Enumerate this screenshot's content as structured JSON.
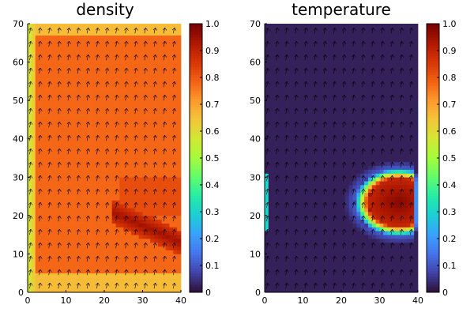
{
  "chart_data": [
    {
      "type": "heatmap",
      "title": "density",
      "xlim": [
        0,
        40
      ],
      "ylim": [
        0,
        70
      ],
      "xticks": [
        0,
        10,
        20,
        30,
        40
      ],
      "yticks": [
        0,
        10,
        20,
        30,
        40,
        50,
        60,
        70
      ],
      "colorbar": {
        "range": [
          0,
          1
        ],
        "ticks": [
          "0",
          "0.1",
          "0.2",
          "0.3",
          "0.4",
          "0.5",
          "0.6",
          "0.7",
          "0.8",
          "0.9",
          "1.0"
        ]
      },
      "colormap": "turbo",
      "grid": false,
      "field": {
        "background": 0.66,
        "inner_region": {
          "x": [
            2,
            40
          ],
          "y": [
            5,
            67
          ],
          "value": 0.78
        },
        "left_edge": {
          "x": [
            0,
            2
          ],
          "value": 0.55
        },
        "dark_streak": {
          "x": [
            22,
            40
          ],
          "y": [
            10,
            22
          ],
          "value": 0.95
        },
        "upper_right_blob": {
          "x": [
            24,
            40
          ],
          "y": [
            20,
            30
          ],
          "value": 0.82
        }
      },
      "quiver": {
        "x_spacing": 2.5,
        "y_spacing": 3.5,
        "color": "#000000"
      }
    },
    {
      "type": "heatmap",
      "title": "temperature",
      "xlim": [
        0,
        40
      ],
      "ylim": [
        0,
        70
      ],
      "xticks": [
        0,
        10,
        20,
        30,
        40
      ],
      "yticks": [
        0,
        10,
        20,
        30,
        40,
        50,
        60,
        70
      ],
      "colorbar": {
        "range": [
          0,
          1
        ],
        "ticks": [
          "0",
          "0.1",
          "0.2",
          "0.3",
          "0.4",
          "0.5",
          "0.6",
          "0.7",
          "0.8",
          "0.9",
          "1.0"
        ]
      },
      "colormap": "turbo",
      "grid": false,
      "field": {
        "background": 0.02,
        "hot_region": {
          "center": [
            35,
            23.5
          ],
          "radius_x": 11,
          "radius_y": 8.5,
          "value": 0.9
        },
        "left_edge_band": {
          "x": [
            0,
            1
          ],
          "y": [
            16,
            31
          ],
          "value": 0.3
        }
      },
      "quiver": {
        "x_spacing": 2.5,
        "y_spacing": 3.5,
        "color": "#000000"
      }
    }
  ],
  "colors": {
    "turbo_stops": [
      "#30123b",
      "#4145ab",
      "#4675ed",
      "#39a2fc",
      "#1bcfd4",
      "#24eca6",
      "#61fc6c",
      "#a4fc3b",
      "#d1e834",
      "#f3c63a",
      "#fe9b2d",
      "#f36315",
      "#d93806",
      "#b11901",
      "#7a0402"
    ]
  }
}
